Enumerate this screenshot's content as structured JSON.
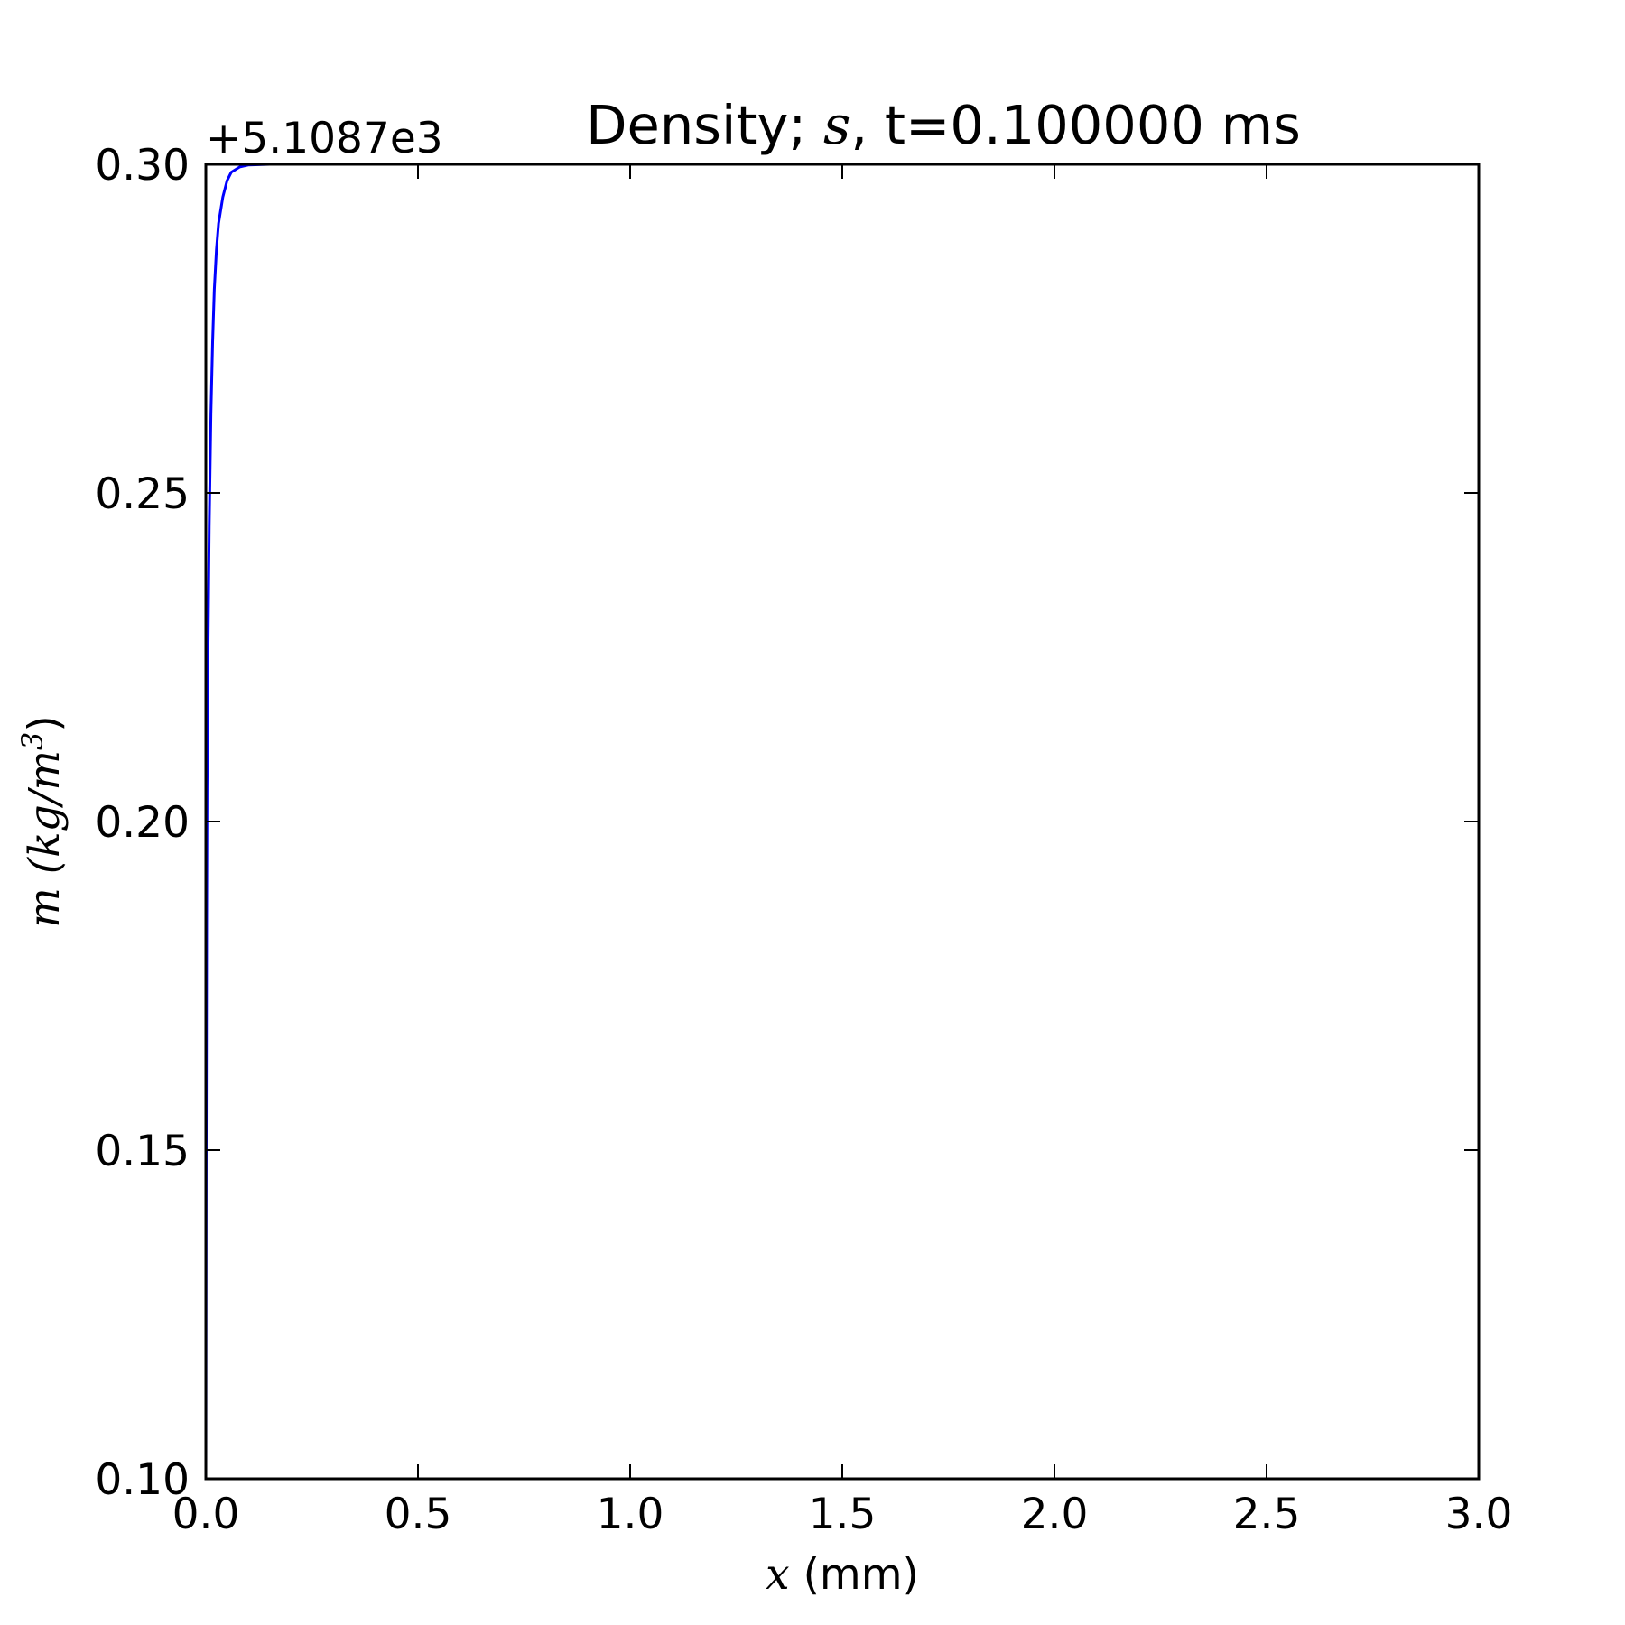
{
  "chart_data": {
    "type": "line",
    "title": {
      "prefix": "Density; ",
      "math": "s",
      "suffix": ", t=0.100000 ms"
    },
    "offset_text": "+5.1087e3",
    "xlabel": {
      "math": "x",
      "text": " (mm)"
    },
    "ylabel": {
      "open": "m (",
      "math": "kg/m",
      "sup": "3",
      "close": ")"
    },
    "xlim": [
      0.0,
      3.0
    ],
    "ylim": [
      0.1,
      0.3
    ],
    "xticks": [
      "0.0",
      "0.5",
      "1.0",
      "1.5",
      "2.0",
      "2.5",
      "3.0"
    ],
    "yticks": [
      "0.10",
      "0.15",
      "0.20",
      "0.25",
      "0.30"
    ],
    "grid": false,
    "series": [
      {
        "color": "#0000ff",
        "x": [
          0.0,
          0.001,
          0.002,
          0.003,
          0.005,
          0.008,
          0.012,
          0.016,
          0.02,
          0.025,
          0.03,
          0.04,
          0.05,
          0.06,
          0.08,
          0.1,
          0.15,
          0.2,
          0.5,
          1.0,
          1.5,
          2.0,
          2.5,
          3.0
        ],
        "y": [
          0.1,
          0.15,
          0.185,
          0.205,
          0.225,
          0.245,
          0.262,
          0.273,
          0.281,
          0.287,
          0.291,
          0.295,
          0.2975,
          0.2988,
          0.2996,
          0.2999,
          0.3,
          0.3,
          0.3,
          0.3,
          0.3,
          0.3,
          0.3,
          0.3
        ]
      }
    ]
  }
}
